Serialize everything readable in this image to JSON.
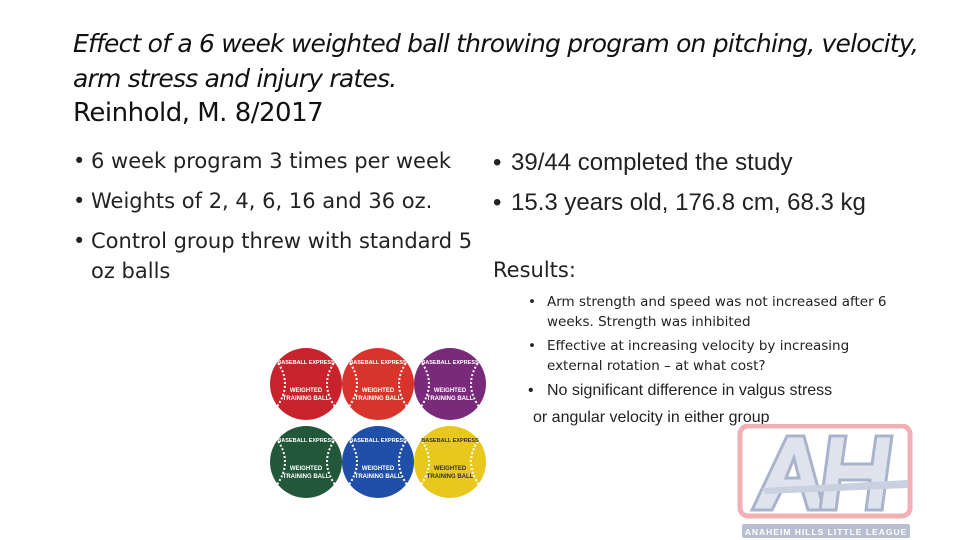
{
  "slide": {
    "title": "Effect of a 6 week weighted ball throwing program on pitching, velocity, arm stress and injury rates.",
    "citation": "Reinhold, M.  8/2017"
  },
  "left_bullets": [
    "6 week program 3 times per week",
    "Weights of 2, 4, 6, 16 and 36 oz.",
    "Control group threw with standard 5 oz balls"
  ],
  "right_bullets": [
    "39/44 completed the study",
    "15.3 years old, 176.8 cm, 68.3 kg"
  ],
  "results": {
    "heading": "Results:",
    "items": [
      "Arm strength and speed was not increased after 6 weeks.  Strength was inhibited",
      "Effective at increasing velocity by increasing external rotation – at what cost?",
      "No significant difference in valgus stress"
    ],
    "continuation": "or angular velocity in either group"
  },
  "image": {
    "ball_brand": "BASEBALL EXPRESS",
    "ball_text": "WEIGHTED TRAINING BALL",
    "ball_colors": [
      "#c8232c",
      "#d9342b",
      "#7a2a7a",
      "#23573a",
      "#1f4fa8",
      "#e8c81e"
    ]
  },
  "logo": {
    "letters": "AH",
    "caption": "ANAHEIM HILLS LITTLE LEAGUE",
    "colors": [
      "#c8232c",
      "#1f3a7a"
    ]
  }
}
